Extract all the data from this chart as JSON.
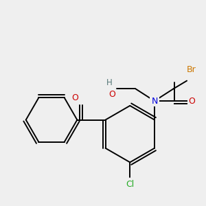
{
  "background_color": "#efefef",
  "figsize": [
    3.0,
    3.0
  ],
  "dpi": 100,
  "colors": {
    "bond": "#000000",
    "O": "#cc0000",
    "N": "#0000dd",
    "Br": "#cc7700",
    "Cl": "#22aa22",
    "H": "#557777"
  }
}
